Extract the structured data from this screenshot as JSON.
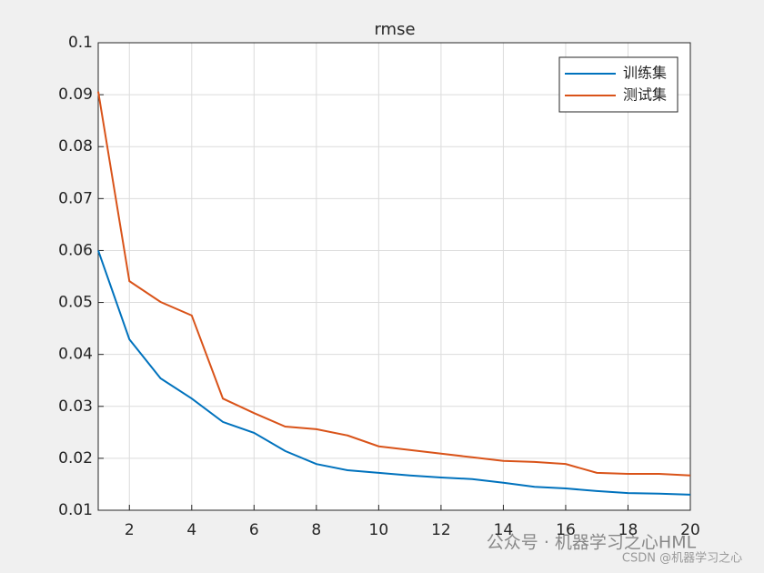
{
  "chart_data": {
    "type": "line",
    "title": "rmse",
    "x": [
      1,
      2,
      3,
      4,
      5,
      6,
      7,
      8,
      9,
      10,
      11,
      12,
      13,
      14,
      15,
      16,
      17,
      18,
      19,
      20
    ],
    "series": [
      {
        "name": "训练集",
        "color": "#0072bd",
        "values": [
          0.06,
          0.0429,
          0.0354,
          0.0315,
          0.027,
          0.0249,
          0.0214,
          0.0189,
          0.0177,
          0.0172,
          0.0167,
          0.0163,
          0.016,
          0.0153,
          0.0145,
          0.0142,
          0.0137,
          0.0133,
          0.0132,
          0.013
        ]
      },
      {
        "name": "测试集",
        "color": "#d95319",
        "values": [
          0.0906,
          0.0541,
          0.0501,
          0.0475,
          0.0315,
          0.0287,
          0.0261,
          0.0256,
          0.0244,
          0.0223,
          0.0216,
          0.0209,
          0.0202,
          0.0195,
          0.0193,
          0.0189,
          0.0172,
          0.017,
          0.017,
          0.0167
        ]
      }
    ],
    "xlim": [
      1,
      20
    ],
    "xticks": [
      2,
      4,
      6,
      8,
      10,
      12,
      14,
      16,
      18,
      20
    ],
    "ylim": [
      0.01,
      0.1
    ],
    "yticks": [
      0.01,
      0.02,
      0.03,
      0.04,
      0.05,
      0.06,
      0.07,
      0.08,
      0.09,
      0.1
    ],
    "grid": true,
    "legend": "northeast",
    "annotations": [
      "公众号 · 机器学习之心HML",
      "CSDN @机器学习之心"
    ]
  }
}
